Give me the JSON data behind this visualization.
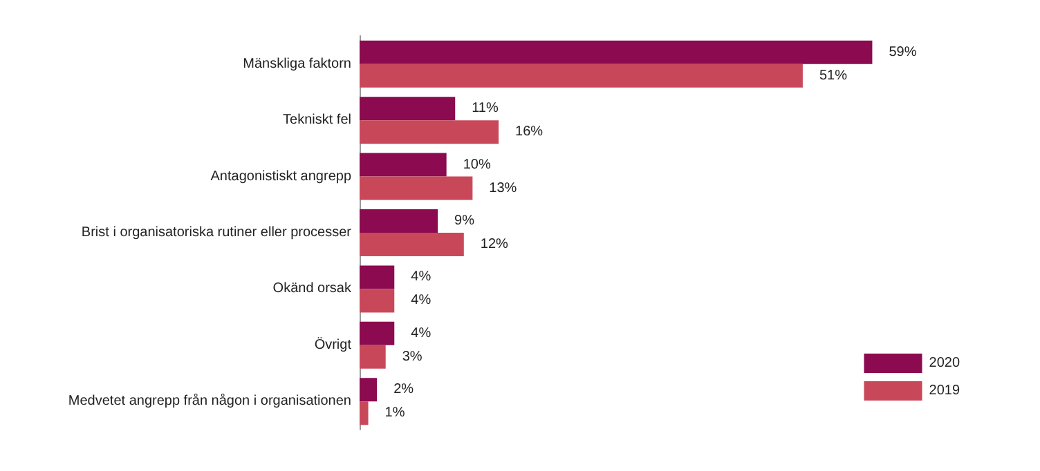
{
  "chart_data": {
    "type": "bar",
    "orientation": "horizontal",
    "categories": [
      "Mänskliga faktorn",
      "Tekniskt fel",
      "Antagonistiskt angrepp",
      "Brist i organisatoriska rutiner eller processer",
      "Okänd orsak",
      "Övrigt",
      "Medvetet angrepp från någon i organisationen"
    ],
    "series": [
      {
        "name": "2020",
        "color": "#8b0a50",
        "values": [
          59,
          11,
          10,
          9,
          4,
          4,
          2
        ],
        "value_labels": [
          "59%",
          "11%",
          "10%",
          "9%",
          "4%",
          "4%",
          "2%"
        ]
      },
      {
        "name": "2019",
        "color": "#c8485a",
        "values": [
          51,
          16,
          13,
          12,
          4,
          3,
          1
        ],
        "value_labels": [
          "51%",
          "16%",
          "13%",
          "12%",
          "4%",
          "3%",
          "1%"
        ]
      }
    ],
    "legend": "bottom right"
  }
}
